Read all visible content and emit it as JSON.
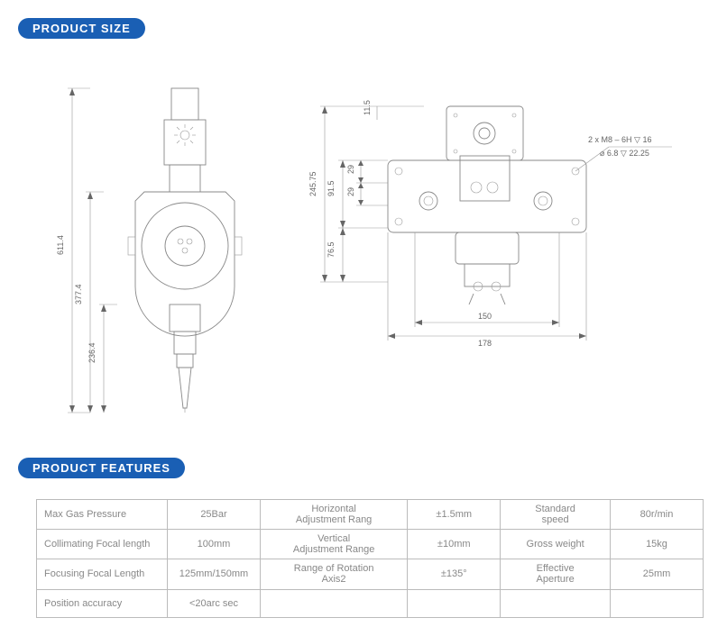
{
  "badges": {
    "size": "PRODUCT SIZE",
    "features": "PRODUCT FEATURES"
  },
  "dimensions_left": {
    "h_total": "611.4",
    "h_body": "377.4",
    "h_nozzle": "236.4"
  },
  "dimensions_right": {
    "h_upper": "245.75",
    "h_mid": "91.5",
    "h_lower": "76.5",
    "h_step1": "29",
    "h_step2": "29",
    "h_top": "11.5",
    "w_inner": "150",
    "w_outer": "178",
    "hole_note1": "2 x  M8 – 6H ▽ 16",
    "hole_note2": "⌀ 6.8 ▽ 22.25"
  },
  "table": {
    "r1c1": "Max Gas Pressure",
    "r1c2": "25Bar",
    "r1c3": "Horizontal\nAdjustment Rang",
    "r1c4": "±1.5mm",
    "r1c5": "Standard\nspeed",
    "r1c6": "80r/min",
    "r2c1": "Collimating Focal length",
    "r2c2": "100mm",
    "r2c3": "Vertical\nAdjustment Range",
    "r2c4": "±10mm",
    "r2c5": "Gross weight",
    "r2c6": "15kg",
    "r3c1": "Focusing Focal Length",
    "r3c2": "125mm/150mm",
    "r3c3": "Range of Rotation\nAxis2",
    "r3c4": "±135°",
    "r3c5": "Effective\nAperture",
    "r3c6": "25mm",
    "r4c1": "Position accuracy",
    "r4c2": "<20arc sec"
  },
  "colors": {
    "badge_bg": "#1a5fb4",
    "line": "#888"
  }
}
